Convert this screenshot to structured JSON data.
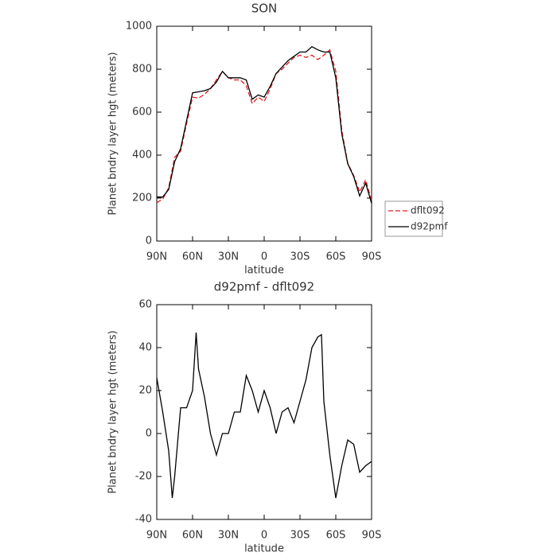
{
  "chart_data": [
    {
      "type": "line",
      "title": "SON",
      "xlabel": "latitude",
      "ylabel": "Planet bndry layer hgt (meters)",
      "x": [
        90,
        85,
        80,
        75,
        70,
        65,
        60,
        55,
        50,
        45,
        40,
        35,
        30,
        25,
        20,
        15,
        10,
        5,
        0,
        -5,
        -10,
        -15,
        -20,
        -25,
        -30,
        -35,
        -40,
        -45,
        -50,
        -55,
        -60,
        -65,
        -70,
        -75,
        -80,
        -85,
        -90
      ],
      "series": [
        {
          "name": "dflt092",
          "color": "#e41a1c",
          "dash": true,
          "values": [
            179,
            195,
            248,
            390,
            418,
            548,
            670,
            665,
            683,
            710,
            750,
            790,
            760,
            750,
            750,
            723,
            640,
            670,
            650,
            708,
            780,
            800,
            828,
            855,
            865,
            855,
            865,
            845,
            865,
            890,
            790,
            515,
            363,
            305,
            228,
            285,
            188
          ]
        },
        {
          "name": "d92pmf",
          "color": "#000000",
          "dash": false,
          "values": [
            205,
            205,
            240,
            370,
            430,
            560,
            690,
            695,
            700,
            710,
            740,
            790,
            760,
            760,
            760,
            750,
            660,
            680,
            670,
            720,
            780,
            810,
            840,
            860,
            880,
            880,
            905,
            890,
            880,
            880,
            760,
            500,
            360,
            300,
            210,
            270,
            175
          ]
        }
      ],
      "xlim": [
        90,
        -90
      ],
      "xticks": [
        {
          "value": 90,
          "label": "90N"
        },
        {
          "value": 60,
          "label": "60N"
        },
        {
          "value": 30,
          "label": "30N"
        },
        0,
        {
          "value": -30,
          "label": "30S"
        },
        {
          "value": -60,
          "label": "60S"
        },
        {
          "value": -90,
          "label": "90S"
        }
      ],
      "ylim": [
        0,
        1000
      ],
      "yticks": [
        0,
        200,
        400,
        600,
        800,
        1000
      ],
      "legend": "right"
    },
    {
      "type": "line",
      "title": "d92pmf - dflt092",
      "xlabel": "latitude",
      "ylabel": "Planet bndry layer hgt (meters)",
      "x": [
        90,
        85,
        80,
        77,
        75,
        70,
        65,
        60,
        57,
        55,
        50,
        45,
        40,
        35,
        30,
        25,
        20,
        15,
        10,
        5,
        0,
        -5,
        -10,
        -15,
        -20,
        -25,
        -30,
        -35,
        -40,
        -45,
        -48,
        -50,
        -55,
        -60,
        -65,
        -70,
        -75,
        -80,
        -85,
        -90
      ],
      "color": "#000000",
      "values": [
        26,
        10,
        -8,
        -30,
        -20,
        12,
        12,
        20,
        47,
        30,
        17,
        0,
        -10,
        0,
        0,
        10,
        10,
        27,
        20,
        10,
        20,
        12,
        0,
        10,
        12,
        5,
        15,
        25,
        40,
        45,
        46,
        15,
        -10,
        -30,
        -15,
        -3,
        -5,
        -18,
        -15,
        -13
      ],
      "xlim": [
        90,
        -90
      ],
      "xticks": [
        {
          "value": 90,
          "label": "90N"
        },
        {
          "value": 60,
          "label": "60N"
        },
        {
          "value": 30,
          "label": "30N"
        },
        0,
        {
          "value": -30,
          "label": "30S"
        },
        {
          "value": -60,
          "label": "60S"
        },
        {
          "value": -90,
          "label": "90S"
        }
      ],
      "ylim": [
        -40,
        60
      ],
      "yticks": [
        -40,
        -20,
        0,
        20,
        40,
        60
      ]
    }
  ]
}
